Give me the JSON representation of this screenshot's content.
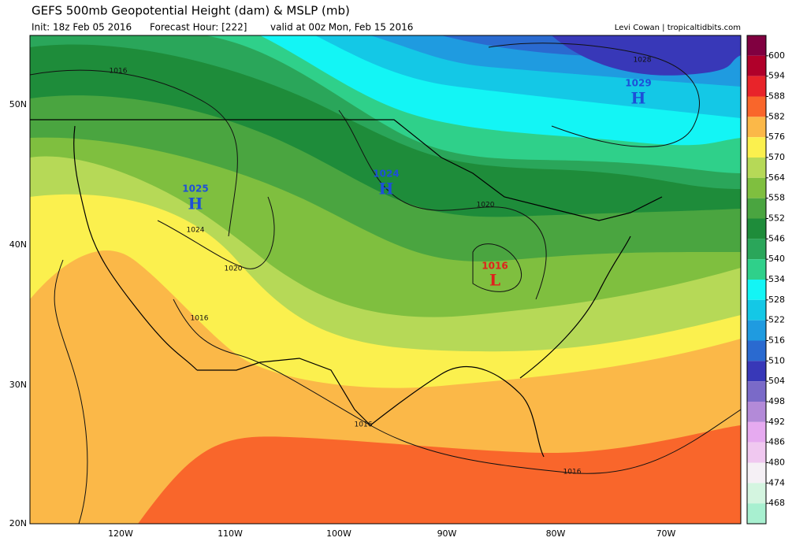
{
  "header": {
    "title": "GEFS 500mb Geopotential Height (dam) & MSLP (mb)",
    "init": "Init: 18z Feb 05 2016",
    "forecast_hour": "Forecast Hour: [222]",
    "valid": "valid at 00z Mon, Feb 15 2016",
    "credit": "Levi Cowan | tropicaltidbits.com"
  },
  "colorbar": {
    "levels": [
      600,
      594,
      588,
      582,
      576,
      570,
      564,
      558,
      552,
      546,
      540,
      534,
      528,
      522,
      516,
      510,
      504,
      498,
      492,
      486,
      480,
      474,
      468
    ],
    "colors": [
      "#800040",
      "#b0002a",
      "#e8242a",
      "#f9662b",
      "#fbb848",
      "#fbf04e",
      "#b6d957",
      "#7fbf3f",
      "#4aa540",
      "#1e8c3a",
      "#2aa65a",
      "#2fd08a",
      "#13f5f5",
      "#14c8e6",
      "#1f9be0",
      "#2a6ad0",
      "#3838b8",
      "#7a6ac8",
      "#b38ad8",
      "#e6aaf0",
      "#f0c8f0",
      "#f5f0f5",
      "#d4f5e0",
      "#a8f0d0"
    ]
  },
  "lat_labels": [
    "50N",
    "40N",
    "30N",
    "20N"
  ],
  "lon_labels": [
    "120W",
    "110W",
    "100W",
    "90W",
    "80W",
    "70W"
  ],
  "pressure_centers": [
    {
      "value": "1025",
      "letter": "H"
    },
    {
      "value": "1024",
      "letter": "H"
    },
    {
      "value": "1029",
      "letter": "H"
    },
    {
      "value": "1016",
      "letter": "L"
    }
  ],
  "isobar_labels": [
    "1016",
    "1024",
    "1020",
    "1016",
    "1020",
    "1016",
    "1016",
    "1028"
  ]
}
